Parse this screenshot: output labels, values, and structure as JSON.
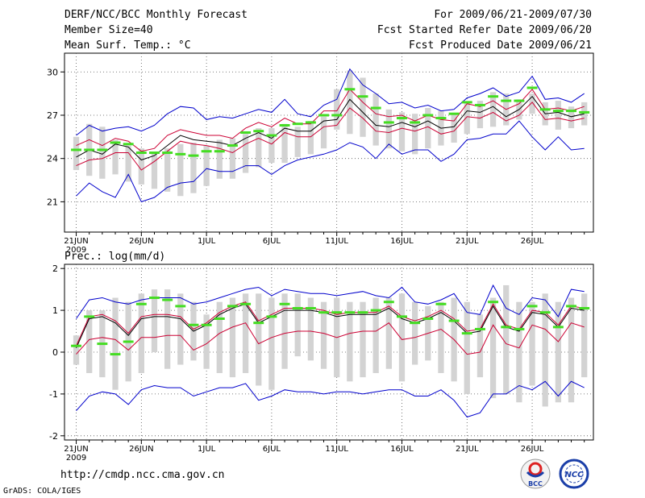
{
  "header": {
    "title": "DERF/NCC/BCC Monthly Forecast",
    "member_size": "Member Size=40",
    "variable_top": "Mean Surf. Temp.: °C",
    "period": "For 2009/06/21-2009/07/30",
    "start_date": "Fcst Started Refer Date 2009/06/20",
    "produced_date": "Fcst Produced Date 2009/06/21"
  },
  "footer": {
    "url": "http://cmdp.ncc.cma.gov.cn",
    "grads": "GrADS: COLA/IGES",
    "logo_bcc": "BCC",
    "logo_ncc": "NCC"
  },
  "colors": {
    "ensemble_mean": "#000000",
    "spread_upper": "#0000cc",
    "spread_lower": "#0000cc",
    "median_line": "#cc0033",
    "member_box": "#d3d3d3",
    "observation_mark": "#44dd22"
  },
  "chart_data": [
    {
      "type": "line",
      "title": "Mean Surf. Temp.: °C",
      "xlabel": "",
      "ylabel": "",
      "x_tick_labels": [
        "21JUN",
        "26JUN",
        "1JUL",
        "6JUL",
        "11JUL",
        "16JUL",
        "21JUL",
        "26JUL"
      ],
      "x_tick_index": [
        0,
        5,
        10,
        15,
        20,
        25,
        30,
        35
      ],
      "x_sublabel": "2009",
      "y_ticks": [
        21,
        24,
        27,
        30
      ],
      "ylim": [
        18.9,
        31.3
      ],
      "grid": true,
      "days": 40,
      "box_top": [
        25.5,
        26.4,
        26.2,
        25.3,
        24.9,
        24.7,
        24.4,
        24.7,
        25.0,
        25.1,
        24.9,
        25.3,
        25.4,
        25.7,
        26.1,
        26.1,
        26.4,
        26.2,
        26.6,
        26.9,
        28.8,
        30.1,
        29.6,
        28.5,
        27.4,
        27.2,
        27.1,
        27.5,
        27.3,
        27.1,
        27.9,
        28.0,
        28.6,
        28.5,
        28.1,
        28.5,
        27.9,
        28.0,
        27.6,
        27.9
      ],
      "box_bottom": [
        23.2,
        22.8,
        22.6,
        22.9,
        22.4,
        22.2,
        21.9,
        21.7,
        21.4,
        21.6,
        22.1,
        22.6,
        22.6,
        23.0,
        23.4,
        23.7,
        23.7,
        24.1,
        24.3,
        24.7,
        26.0,
        25.7,
        25.5,
        24.9,
        24.7,
        24.5,
        24.3,
        24.7,
        24.9,
        25.1,
        25.7,
        26.1,
        26.2,
        26.3,
        26.7,
        27.1,
        26.3,
        26.0,
        26.1,
        26.3
      ],
      "series": [
        {
          "name": "upper",
          "values": [
            25.6,
            26.3,
            25.9,
            26.1,
            26.2,
            25.9,
            26.3,
            27.1,
            27.6,
            27.5,
            26.7,
            26.9,
            26.8,
            27.1,
            27.4,
            27.2,
            28.1,
            27.1,
            26.9,
            27.7,
            28.1,
            30.2,
            29.1,
            28.5,
            27.8,
            27.9,
            27.5,
            27.7,
            27.3,
            27.4,
            28.2,
            28.5,
            28.9,
            28.3,
            28.6,
            29.7,
            28.1,
            28.2,
            27.9,
            28.5
          ]
        },
        {
          "name": "red_upper",
          "values": [
            24.9,
            25.3,
            24.9,
            25.4,
            25.2,
            24.5,
            24.7,
            25.6,
            26.0,
            25.8,
            25.6,
            25.6,
            25.4,
            26.1,
            26.5,
            26.2,
            26.8,
            26.4,
            26.4,
            27.3,
            27.3,
            28.8,
            27.9,
            27.1,
            26.9,
            27.0,
            26.6,
            27.0,
            26.7,
            26.6,
            27.8,
            27.6,
            28.0,
            27.4,
            27.8,
            28.8,
            27.4,
            27.5,
            27.3,
            27.6
          ]
        },
        {
          "name": "mean",
          "values": [
            24.1,
            24.6,
            24.3,
            25.0,
            24.8,
            23.9,
            24.2,
            24.9,
            25.6,
            25.3,
            25.2,
            25.1,
            24.9,
            25.4,
            25.8,
            25.4,
            26.1,
            25.9,
            25.9,
            26.6,
            26.7,
            28.1,
            27.2,
            26.3,
            26.2,
            26.5,
            26.2,
            26.6,
            26.1,
            26.2,
            27.3,
            27.2,
            27.6,
            26.9,
            27.4,
            28.3,
            27.1,
            27.2,
            26.9,
            27.1
          ]
        },
        {
          "name": "red_lower",
          "values": [
            23.5,
            23.9,
            24.0,
            24.4,
            24.4,
            23.2,
            23.8,
            24.5,
            25.2,
            25.0,
            24.9,
            24.7,
            24.4,
            25.0,
            25.4,
            25.0,
            25.8,
            25.5,
            25.5,
            26.2,
            26.3,
            27.5,
            26.8,
            25.9,
            25.8,
            26.1,
            25.9,
            26.2,
            25.7,
            25.9,
            26.9,
            26.8,
            27.2,
            26.6,
            27.0,
            27.9,
            26.7,
            26.8,
            26.6,
            26.8
          ]
        },
        {
          "name": "lower",
          "values": [
            21.4,
            22.3,
            21.7,
            21.3,
            22.9,
            21.0,
            21.3,
            22.0,
            22.3,
            22.4,
            23.3,
            23.1,
            23.1,
            23.5,
            23.5,
            22.9,
            23.5,
            23.9,
            24.1,
            24.3,
            24.6,
            25.1,
            24.8,
            24.0,
            25.0,
            24.3,
            24.6,
            24.6,
            23.8,
            24.3,
            25.3,
            25.4,
            25.7,
            25.7,
            26.6,
            25.5,
            24.6,
            25.5,
            24.6,
            24.7
          ]
        }
      ],
      "observed": [
        24.6,
        24.6,
        24.6,
        25.1,
        25.0,
        24.4,
        24.4,
        24.4,
        24.3,
        24.2,
        24.5,
        24.5,
        24.9,
        25.8,
        25.9,
        25.6,
        26.3,
        26.4,
        26.5,
        27.0,
        27.0,
        28.8,
        28.3,
        27.5,
        26.5,
        26.8,
        26.5,
        27.0,
        26.8,
        27.1,
        27.9,
        27.7,
        28.3,
        28.0,
        28.0,
        28.9,
        27.4,
        27.3,
        27.3,
        27.2
      ]
    },
    {
      "type": "line",
      "title": "Prec.: log(mm/d)",
      "xlabel": "",
      "ylabel": "",
      "x_tick_labels": [
        "21JUN",
        "26JUN",
        "1JUL",
        "6JUL",
        "11JUL",
        "16JUL",
        "21JUL",
        "26JUL"
      ],
      "x_tick_index": [
        0,
        5,
        10,
        15,
        20,
        25,
        30,
        35
      ],
      "x_sublabel": "2009",
      "y_ticks": [
        -2,
        -1,
        0,
        1,
        2
      ],
      "ylim": [
        -2.1,
        2.1
      ],
      "grid": true,
      "days": 40,
      "box_top": [
        0.4,
        1.0,
        1.0,
        1.3,
        1.2,
        1.4,
        1.5,
        1.5,
        1.4,
        1.2,
        0.9,
        1.2,
        1.3,
        1.4,
        1.4,
        1.3,
        1.4,
        1.4,
        1.3,
        1.2,
        1.3,
        1.2,
        1.2,
        1.3,
        1.3,
        1.4,
        1.2,
        1.1,
        1.2,
        1.3,
        1.2,
        0.9,
        1.3,
        1.6,
        1.2,
        1.2,
        1.4,
        1.2,
        1.3,
        1.4
      ],
      "box_bottom": [
        -0.3,
        -0.5,
        -0.6,
        -0.9,
        -0.7,
        -0.5,
        0.0,
        -0.4,
        -0.3,
        -0.2,
        -0.4,
        -0.5,
        -0.6,
        -0.5,
        -0.8,
        -0.9,
        -0.4,
        -0.1,
        -0.2,
        -0.4,
        -0.6,
        -0.7,
        -0.6,
        -0.5,
        -0.4,
        -0.7,
        -0.3,
        -0.2,
        -0.5,
        -0.7,
        -1.0,
        -0.6,
        -1.1,
        -1.0,
        -1.2,
        -0.8,
        -1.3,
        -1.2,
        -1.2,
        -0.6
      ],
      "series": [
        {
          "name": "upper",
          "values": [
            0.8,
            1.25,
            1.3,
            1.2,
            1.15,
            1.25,
            1.3,
            1.3,
            1.3,
            1.15,
            1.2,
            1.3,
            1.4,
            1.5,
            1.55,
            1.35,
            1.5,
            1.45,
            1.4,
            1.4,
            1.35,
            1.4,
            1.45,
            1.35,
            1.3,
            1.55,
            1.2,
            1.15,
            1.25,
            1.4,
            0.95,
            0.9,
            1.6,
            1.05,
            0.9,
            1.3,
            1.25,
            0.85,
            1.5,
            1.45
          ]
        },
        {
          "name": "red_upper",
          "values": [
            0.15,
            0.85,
            0.9,
            0.75,
            0.45,
            0.85,
            0.9,
            0.9,
            0.85,
            0.55,
            0.7,
            0.95,
            1.1,
            1.2,
            0.75,
            0.9,
            1.05,
            1.05,
            1.05,
            1.0,
            0.9,
            0.95,
            0.95,
            0.95,
            1.1,
            0.85,
            0.75,
            0.85,
            1.0,
            0.8,
            0.5,
            0.55,
            1.15,
            0.65,
            0.55,
            1.0,
            0.95,
            0.65,
            1.1,
            1.05
          ]
        },
        {
          "name": "mean",
          "values": [
            0.1,
            0.8,
            0.85,
            0.7,
            0.4,
            0.8,
            0.85,
            0.85,
            0.8,
            0.5,
            0.65,
            0.9,
            1.05,
            1.15,
            0.7,
            0.85,
            1.0,
            1.0,
            1.0,
            0.95,
            0.85,
            0.9,
            0.9,
            0.9,
            1.05,
            0.8,
            0.7,
            0.8,
            0.95,
            0.75,
            0.45,
            0.5,
            1.1,
            0.6,
            0.5,
            0.95,
            0.9,
            0.6,
            1.05,
            1.0
          ]
        },
        {
          "name": "red_lower",
          "values": [
            -0.05,
            0.3,
            0.35,
            0.3,
            0.05,
            0.35,
            0.35,
            0.4,
            0.4,
            0.05,
            0.2,
            0.45,
            0.6,
            0.7,
            0.2,
            0.35,
            0.45,
            0.5,
            0.5,
            0.45,
            0.35,
            0.45,
            0.5,
            0.5,
            0.7,
            0.3,
            0.35,
            0.45,
            0.55,
            0.3,
            -0.05,
            0.0,
            0.65,
            0.2,
            0.1,
            0.65,
            0.55,
            0.25,
            0.7,
            0.6
          ]
        },
        {
          "name": "lower",
          "values": [
            -1.4,
            -1.05,
            -0.95,
            -1.0,
            -1.25,
            -0.9,
            -0.8,
            -0.85,
            -0.85,
            -1.05,
            -0.95,
            -0.85,
            -0.85,
            -0.75,
            -1.15,
            -1.05,
            -0.9,
            -0.95,
            -0.95,
            -1.0,
            -0.95,
            -0.95,
            -1.0,
            -0.95,
            -0.9,
            -0.9,
            -1.05,
            -1.05,
            -0.9,
            -1.15,
            -1.55,
            -1.45,
            -1.0,
            -1.0,
            -0.8,
            -0.9,
            -0.7,
            -1.05,
            -0.7,
            -0.85
          ]
        }
      ],
      "observed": [
        0.15,
        0.85,
        0.2,
        -0.05,
        0.25,
        1.15,
        1.3,
        1.25,
        1.1,
        0.65,
        0.65,
        0.8,
        1.1,
        1.15,
        0.7,
        0.85,
        1.15,
        1.05,
        1.05,
        0.95,
        0.95,
        0.95,
        0.95,
        1.0,
        1.2,
        0.85,
        0.7,
        0.8,
        1.15,
        0.75,
        0.45,
        0.55,
        1.2,
        0.6,
        0.55,
        1.1,
        0.95,
        0.6,
        1.1,
        1.05
      ]
    }
  ]
}
